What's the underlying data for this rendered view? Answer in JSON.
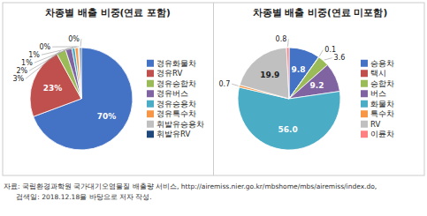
{
  "chart_data": [
    {
      "type": "pie",
      "title": "차종별 배출 비중(연료 포함)",
      "categories": [
        "경유화물차",
        "경유RV",
        "경유승합차",
        "경유버스",
        "경유승용차",
        "경유특수차",
        "휘발유승용차",
        "휘발유RV"
      ],
      "values": [
        70,
        23,
        3,
        2,
        1,
        1,
        0.5,
        0.5
      ],
      "value_labels": [
        "70%",
        "23%",
        "3%",
        "2%",
        "1%",
        "1%",
        "0%",
        "0%"
      ],
      "colors": [
        "#4472C4",
        "#C0504D",
        "#9BBB59",
        "#8064A2",
        "#4BACC6",
        "#F79646",
        "#C0C0C0",
        "#1F497D"
      ],
      "data_labels": true,
      "legend": "right"
    },
    {
      "type": "pie",
      "title": "차종별 배출 비중(연료 미포함)",
      "categories": [
        "승용차",
        "택시",
        "승합차",
        "버스",
        "화물차",
        "특수차",
        "RV",
        "이륜차"
      ],
      "values": [
        9.8,
        0.1,
        3.6,
        9.2,
        56.0,
        0.7,
        19.9,
        0.8
      ],
      "value_labels": [
        "9.8",
        "0.1",
        "3.6",
        "9.2",
        "56.0",
        "0.7",
        "19.9",
        "0.8"
      ],
      "colors": [
        "#4472C4",
        "#C0504D",
        "#9BBB59",
        "#8064A2",
        "#4BACC6",
        "#F79646",
        "#C0C0C0",
        "#FF8080"
      ],
      "data_labels": true,
      "legend": "right"
    }
  ],
  "annotations": [
    "자료: 국립환경과학원 국가대기오염물질 배출량 서비스, http://airemiss.nier.go.kr/mbshome/mbs/airemiss/index.do,",
    "      검색일: 2018.12.18을 바탕으로 저자 작성."
  ]
}
